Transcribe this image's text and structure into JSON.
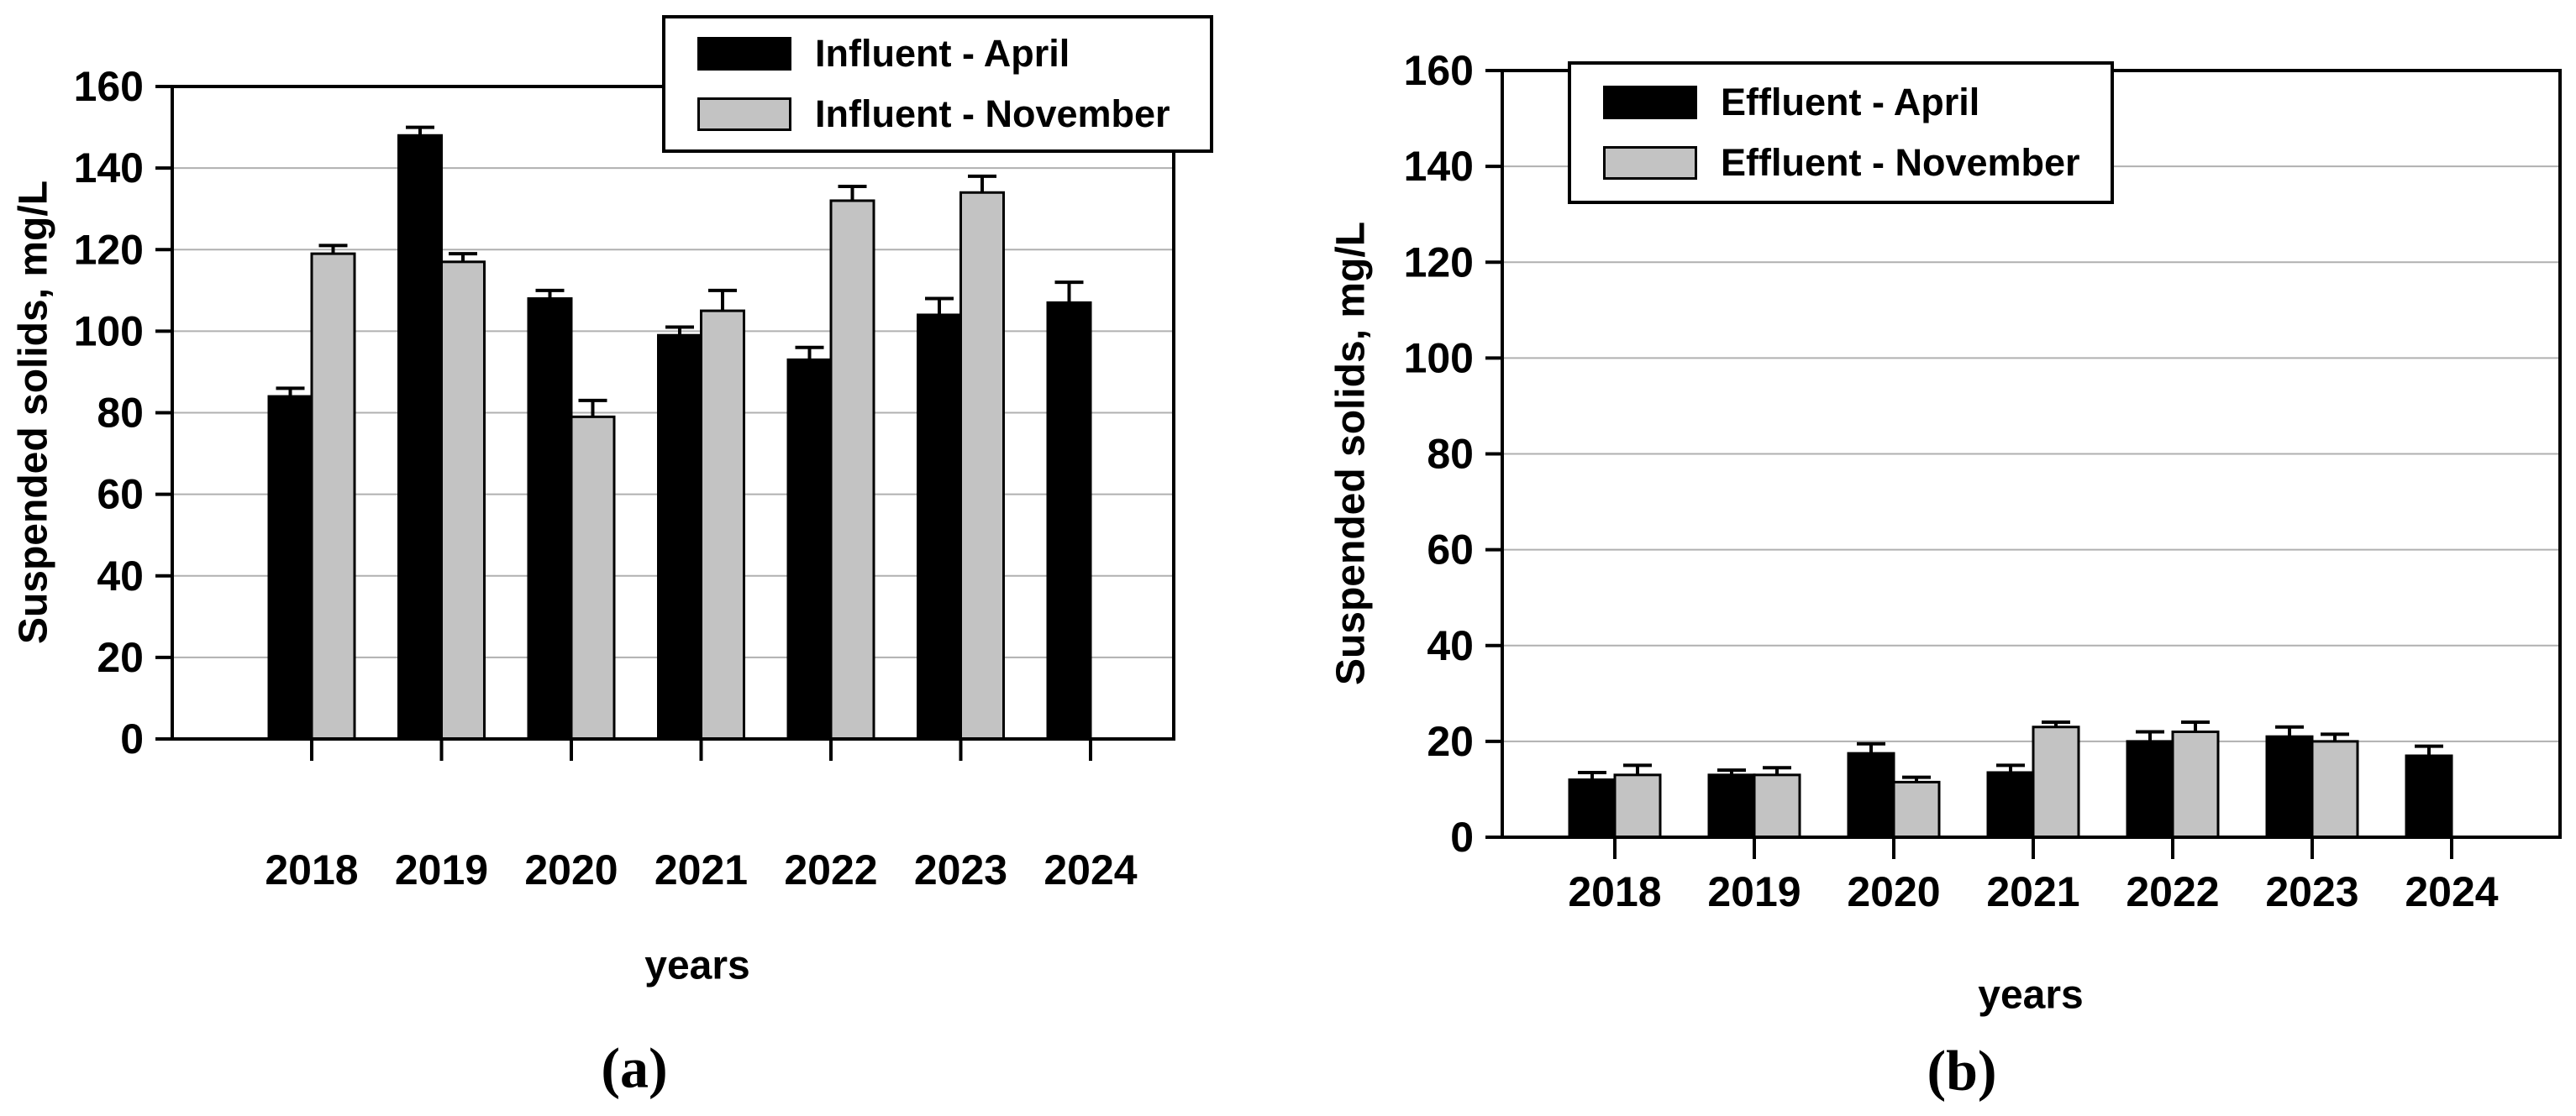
{
  "figure": {
    "background": "#ffffff",
    "colors": {
      "april_bar": "#000000",
      "november_bar": "#c3c3c3",
      "gridline": "#b0b0b0",
      "frame": "#000000"
    }
  },
  "chart_data": [
    {
      "id": "a",
      "type": "bar",
      "caption": "(a)",
      "xlabel": "years",
      "ylabel": "Suspended solids, mg/L",
      "categories": [
        "2018",
        "2019",
        "2020",
        "2021",
        "2022",
        "2023",
        "2024"
      ],
      "ylim": [
        0,
        160
      ],
      "ytick_step": 20,
      "grid": true,
      "legend_position": "top-right",
      "series": [
        {
          "name": "Influent - April",
          "color": "#000000",
          "values": [
            84,
            148,
            108,
            99,
            93,
            104,
            107
          ],
          "errors": [
            2,
            2,
            2,
            2,
            3,
            4,
            5
          ]
        },
        {
          "name": "Influent - November",
          "color": "#c3c3c3",
          "values": [
            119,
            117,
            79,
            105,
            132,
            134,
            null
          ],
          "errors": [
            2,
            2,
            4,
            5,
            3.5,
            4,
            null
          ]
        }
      ]
    },
    {
      "id": "b",
      "type": "bar",
      "caption": "(b)",
      "xlabel": "years",
      "ylabel": "Suspended solids, mg/L",
      "categories": [
        "2018",
        "2019",
        "2020",
        "2021",
        "2022",
        "2023",
        "2024"
      ],
      "ylim": [
        0,
        160
      ],
      "ytick_step": 20,
      "grid": true,
      "legend_position": "top-left",
      "series": [
        {
          "name": "Effluent - April",
          "color": "#000000",
          "values": [
            12,
            13,
            17.5,
            13.5,
            20,
            21,
            17
          ],
          "errors": [
            1.5,
            1,
            2,
            1.5,
            2,
            2,
            2
          ]
        },
        {
          "name": "Effluent - November",
          "color": "#c3c3c3",
          "values": [
            13,
            13,
            11.5,
            23,
            22,
            20,
            null
          ],
          "errors": [
            2,
            1.5,
            1,
            1,
            2,
            1.5,
            null
          ]
        }
      ]
    }
  ]
}
